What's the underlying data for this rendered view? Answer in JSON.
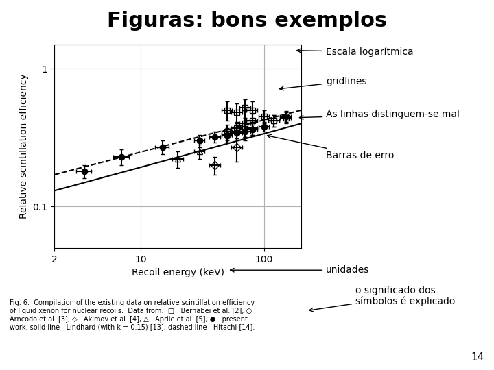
{
  "chart_data": {
    "type": "scatter",
    "title": "Figuras: bons exemplos",
    "x_label": "Recoil energy (keV)",
    "y_label": "Relative scintillation efficiency",
    "log": true,
    "grid": true,
    "color": "black",
    "xlim": [
      2,
      200
    ],
    "xticks": [
      2,
      10,
      100
    ],
    "ylim": [
      0.05,
      1.5
    ],
    "yticks": [
      0.1,
      1
    ],
    "series": [
      {
        "type": "line",
        "line_style": "solid",
        "x": [
          2,
          200
        ],
        "values": [
          0.13,
          0.4
        ]
      },
      {
        "type": "line",
        "line_style": "dashed",
        "x": [
          2,
          200
        ],
        "values": [
          0.17,
          0.5
        ]
      },
      {
        "type": "scatter",
        "marker": "circle",
        "x": [
          3.5,
          7,
          15,
          30,
          40,
          50,
          60,
          70,
          80,
          100
        ],
        "values": [
          0.18,
          0.23,
          0.27,
          0.3,
          0.32,
          0.33,
          0.34,
          0.35,
          0.36,
          0.38
        ],
        "xerr": [
          0.5,
          1,
          2,
          3,
          4,
          5,
          6,
          7,
          8,
          10
        ],
        "yerr": [
          0.02,
          0.03,
          0.03,
          0.03,
          0.03,
          0.03,
          0.03,
          0.03,
          0.03,
          0.03
        ]
      },
      {
        "type": "scatter",
        "marker": "open_square",
        "x": [
          50,
          60,
          70,
          80,
          100,
          120,
          150
        ],
        "values": [
          0.35,
          0.37,
          0.4,
          0.42,
          0.45,
          0.42,
          0.44
        ],
        "xerr": [
          5,
          6,
          7,
          8,
          10,
          12,
          15
        ],
        "yerr": [
          0.04,
          0.04,
          0.1,
          0.05,
          0.05,
          0.04,
          0.04
        ]
      },
      {
        "type": "scatter",
        "marker": "open_square",
        "x": [
          50,
          60,
          70,
          80
        ],
        "values": [
          0.5,
          0.48,
          0.52,
          0.5
        ],
        "xerr": [
          5,
          6,
          7,
          8
        ],
        "yerr": [
          0.08,
          0.08,
          0.08,
          0.08
        ]
      },
      {
        "type": "scatter",
        "marker": "open_circle",
        "x": [
          120,
          150
        ],
        "values": [
          0.42,
          0.45
        ],
        "xerr": [
          12,
          15
        ],
        "yerr": [
          0.04,
          0.04
        ]
      },
      {
        "type": "scatter",
        "marker": "open_diamond",
        "x": [
          40,
          60
        ],
        "values": [
          0.2,
          0.27
        ],
        "xerr": [
          4,
          6
        ],
        "yerr": [
          0.03,
          0.06
        ]
      },
      {
        "type": "scatter",
        "marker": "open_triangle",
        "x": [
          20,
          30,
          50,
          60,
          70,
          80
        ],
        "values": [
          0.22,
          0.25,
          0.33,
          0.35,
          0.36,
          0.37
        ],
        "xerr": [
          2,
          3,
          5,
          6,
          7,
          8
        ],
        "yerr": [
          0.03,
          0.03,
          0.04,
          0.04,
          0.04,
          0.04
        ]
      }
    ],
    "annotations": [
      "Escala logarítmica",
      "gridlines",
      "As linhas distinguem-se mal",
      "Barras de erro",
      "unidades",
      "o significado dos\nsímbolos é explicado"
    ],
    "caption": "Fig. 6.  Compilation of the existing data on relative scintillation efficiency\nof liquid xenon for nuclear recoils.  Data from:  □   Bernabei et al. [2], ○\nArncodo et al. [3], ◇   Akimov et al. [4], △   Aprile et al. [5], ●   present\nwork. solid line   Lindhard (with k = 0.15) [13], dashed line   Hitachi [14].",
    "slide_number": "14"
  }
}
